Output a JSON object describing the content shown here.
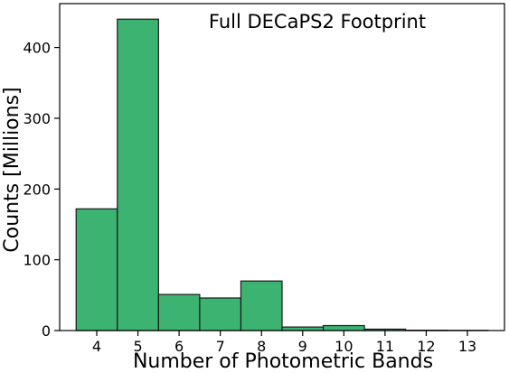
{
  "chart_data": {
    "type": "bar",
    "title": "",
    "annotation": "Full DECaPS2 Footprint",
    "xlabel": "Number of Photometric Bands",
    "ylabel": "Counts [Millions]",
    "categories": [
      "4",
      "5",
      "6",
      "7",
      "8",
      "9",
      "10",
      "11",
      "12",
      "13"
    ],
    "values": [
      172,
      440,
      51,
      46,
      70,
      5,
      7,
      2,
      0.5,
      0.3
    ],
    "x_ticks": [
      "4",
      "5",
      "6",
      "7",
      "8",
      "9",
      "10",
      "11",
      "12",
      "13"
    ],
    "y_ticks": [
      "0",
      "100",
      "200",
      "300",
      "400"
    ],
    "y_tick_values": [
      0,
      100,
      200,
      300,
      400
    ],
    "ylim": [
      0,
      462
    ],
    "xlim": [
      3.1,
      13.9
    ],
    "grid": false,
    "legend": "none",
    "bar_color": "#3cb371",
    "edge_color": "#1a1a1a"
  }
}
